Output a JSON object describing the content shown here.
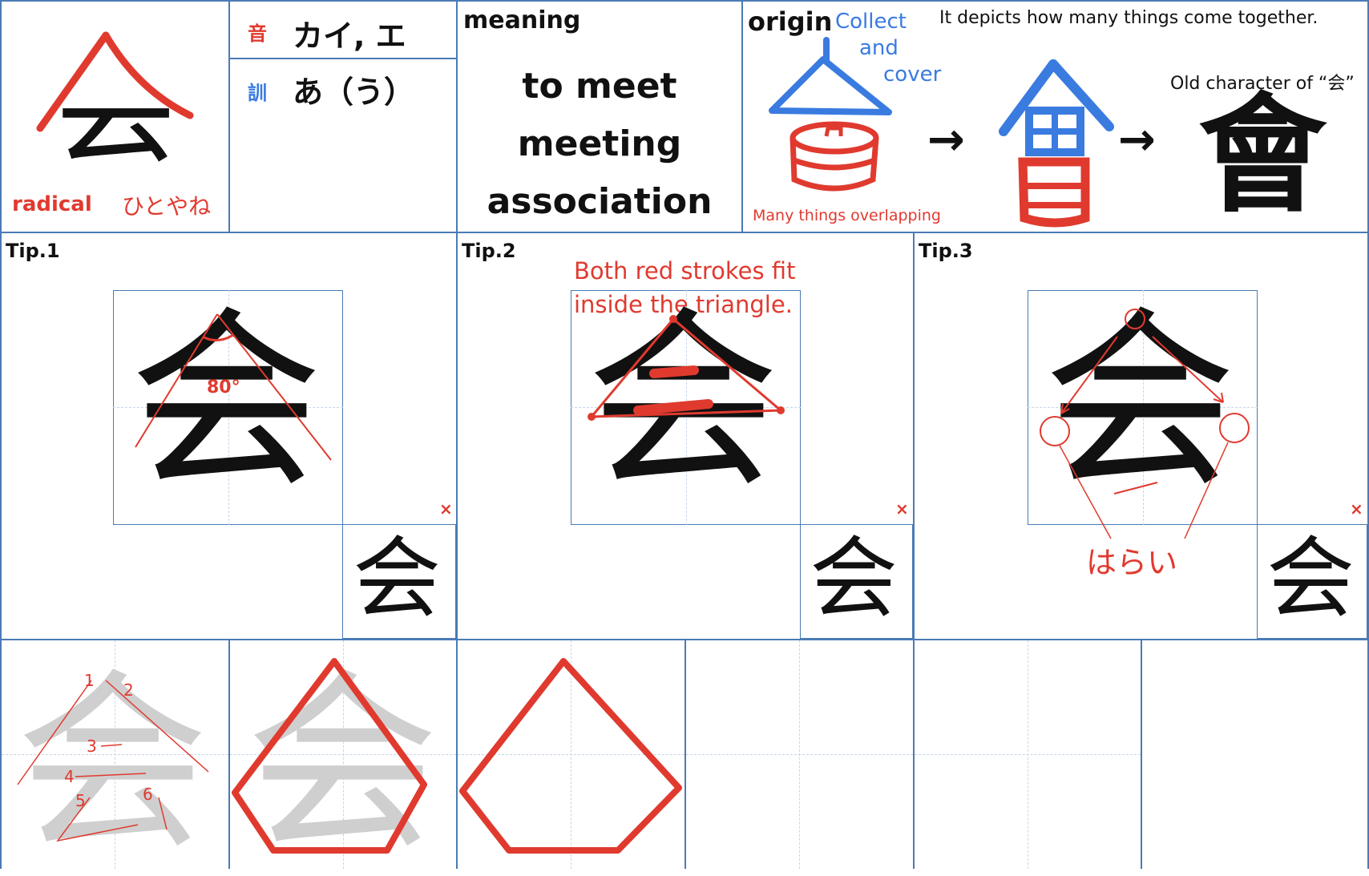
{
  "header": {
    "main_kanji": "会",
    "radical_label": "radical",
    "radical_name": "ひとやね",
    "on_icon": "音",
    "on_reading": "カイ, エ",
    "kun_icon": "訓",
    "kun_reading": "あ（う）"
  },
  "meaning": {
    "title": "meaning",
    "items": [
      "to meet",
      "meeting",
      "association"
    ]
  },
  "origin": {
    "title": "origin",
    "note_collect": "Collect",
    "note_and": "and",
    "note_cover": "cover",
    "description": "It depicts how many things come together.",
    "overlap_note": "Many things overlapping",
    "old_label": "Old character of “会”",
    "old_kanji": "會",
    "mid_kanji": "會",
    "arrow": "→"
  },
  "tips": [
    {
      "label": "Tip.1",
      "angle": "80°",
      "kanji": "会",
      "mini": "会",
      "x": "×"
    },
    {
      "label": "Tip.2",
      "note_line1": "Both red strokes fit",
      "note_line2": "inside the triangle.",
      "kanji": "会",
      "mini": "会",
      "x": "×"
    },
    {
      "label": "Tip.3",
      "harai": "はらい",
      "kanji": "会",
      "mini": "会",
      "x": "×"
    }
  ],
  "practice": {
    "kanji": "会",
    "stroke_numbers": [
      "1",
      "2",
      "3",
      "4",
      "5",
      "6"
    ]
  },
  "colors": {
    "grid": "#4a7bb5",
    "accent": "#e03a2f",
    "blue": "#3a7be0",
    "ghost": "#cfcfcf"
  }
}
